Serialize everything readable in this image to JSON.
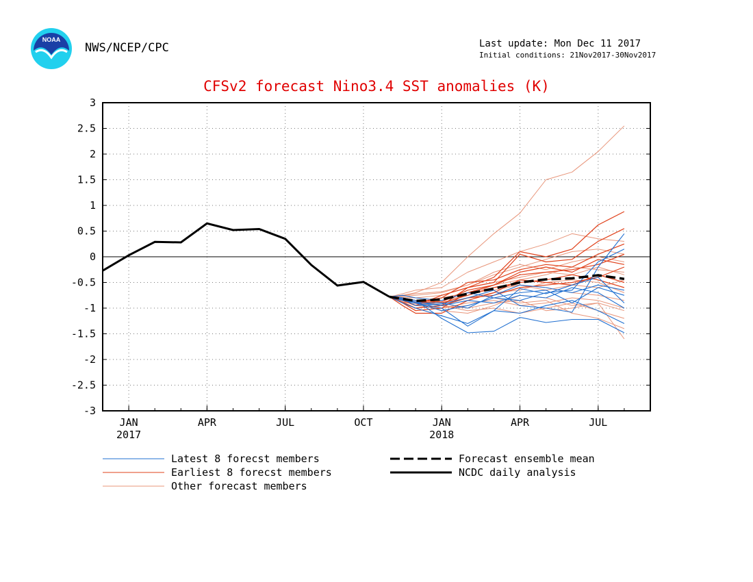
{
  "header": {
    "logo_text": "NOAA",
    "agency": "NWS/NCEP/CPC",
    "last_update": "Last update: Mon Dec 11 2017",
    "initial_conditions": "Initial conditions: 21Nov2017-30Nov2017"
  },
  "colors": {
    "title": "#e00000",
    "latest": "#1f6fd0",
    "earliest": "#e0401a",
    "other": "#e8957a",
    "mean": "#000000",
    "analysis": "#000000",
    "logo_blue": "#1a3fa6",
    "logo_cyan": "#22d0ee"
  },
  "chart_data": {
    "type": "line",
    "title": "CFSv2 forecast Nino3.4 SST anomalies (K)",
    "ylim": [
      -3,
      3
    ],
    "yticks": [
      "3",
      "2.5",
      "2",
      "1.5",
      "1",
      "0.5",
      "0",
      "-0.5",
      "-1",
      "-1.5",
      "-2",
      "-2.5",
      "-3"
    ],
    "xticks": [
      {
        "label": "JAN",
        "year": "2017",
        "t": 0
      },
      {
        "label": "APR",
        "year": "",
        "t": 3
      },
      {
        "label": "JUL",
        "year": "",
        "t": 6
      },
      {
        "label": "OCT",
        "year": "",
        "t": 9
      },
      {
        "label": "JAN",
        "year": "2018",
        "t": 12
      },
      {
        "label": "APR",
        "year": "",
        "t": 15
      },
      {
        "label": "JUL",
        "year": "",
        "t": 18
      }
    ],
    "grid": true,
    "xlim": [
      -1,
      20
    ],
    "analysis": {
      "name": "NCDC daily analysis",
      "x": [
        -1,
        0,
        1,
        2,
        3,
        4,
        5,
        6,
        7,
        8,
        9,
        10
      ],
      "y": [
        -0.27,
        0.03,
        0.29,
        0.28,
        0.65,
        0.52,
        0.54,
        0.35,
        -0.16,
        -0.56,
        -0.49,
        -0.78
      ]
    },
    "mean": {
      "name": "Forecast ensemble mean",
      "x": [
        10,
        10.5,
        11,
        12,
        13,
        14,
        15,
        16,
        17,
        18,
        19
      ],
      "y": [
        -0.78,
        -0.82,
        -0.86,
        -0.83,
        -0.72,
        -0.62,
        -0.5,
        -0.44,
        -0.42,
        -0.36,
        -0.43
      ]
    },
    "forecast_x": [
      10,
      10.5,
      11,
      12,
      13,
      14,
      15,
      16,
      17,
      18,
      19
    ],
    "members_latest": {
      "name": "Latest 8 forecst members",
      "series": [
        [
          -0.78,
          -0.8,
          -0.85,
          -1.2,
          -1.48,
          -1.45,
          -1.18,
          -1.28,
          -1.22,
          -1.22,
          -1.48
        ],
        [
          -0.78,
          -0.85,
          -0.9,
          -1.0,
          -1.35,
          -1.05,
          -0.62,
          -0.72,
          -0.55,
          -0.4,
          -0.9
        ],
        [
          -0.78,
          -0.82,
          -0.95,
          -0.92,
          -0.8,
          -0.65,
          -0.95,
          -1.0,
          -1.08,
          -0.2,
          0.45
        ],
        [
          -0.78,
          -0.75,
          -0.8,
          -0.85,
          -0.7,
          -0.8,
          -0.7,
          -0.65,
          -0.9,
          -0.6,
          -0.75
        ],
        [
          -0.78,
          -0.9,
          -1.0,
          -1.15,
          -1.3,
          -1.05,
          -1.1,
          -0.95,
          -0.85,
          -1.05,
          -1.3
        ],
        [
          -0.78,
          -0.8,
          -0.88,
          -0.95,
          -0.85,
          -0.9,
          -0.75,
          -0.8,
          -0.6,
          -0.7,
          -1.0
        ],
        [
          -0.78,
          -0.83,
          -0.9,
          -1.05,
          -0.95,
          -0.8,
          -0.85,
          -0.7,
          -0.65,
          -0.1,
          0.15
        ],
        [
          -0.78,
          -0.8,
          -0.9,
          -0.9,
          -1.0,
          -0.75,
          -0.55,
          -0.6,
          -0.7,
          -0.55,
          -0.65
        ]
      ]
    },
    "members_earliest": {
      "name": "Earliest 8 forecst members",
      "series": [
        [
          -0.78,
          -0.85,
          -0.95,
          -0.75,
          -0.6,
          -0.4,
          0.1,
          0.0,
          0.15,
          0.62,
          0.88
        ],
        [
          -0.78,
          -0.88,
          -1.0,
          -0.95,
          -0.6,
          -0.5,
          0.05,
          -0.1,
          -0.05,
          0.3,
          0.55
        ],
        [
          -0.78,
          -0.9,
          -1.05,
          -1.0,
          -0.7,
          -0.55,
          -0.3,
          -0.2,
          -0.3,
          -0.05,
          -0.15
        ],
        [
          -0.78,
          -0.95,
          -1.1,
          -1.1,
          -0.85,
          -0.7,
          -0.45,
          -0.5,
          -0.55,
          -0.35,
          -0.5
        ],
        [
          -0.78,
          -0.82,
          -0.9,
          -0.8,
          -0.5,
          -0.45,
          -0.25,
          -0.15,
          -0.2,
          0.05,
          0.25
        ],
        [
          -0.78,
          -0.85,
          -0.88,
          -0.9,
          -0.75,
          -0.6,
          -0.5,
          -0.45,
          -0.35,
          -0.45,
          -0.6
        ],
        [
          -0.78,
          -0.9,
          -1.0,
          -0.95,
          -0.8,
          -0.75,
          -0.6,
          -0.55,
          -0.5,
          -0.4,
          -0.2
        ],
        [
          -0.78,
          -0.8,
          -0.85,
          -0.88,
          -0.65,
          -0.55,
          -0.35,
          -0.3,
          -0.25,
          -0.15,
          0.05
        ]
      ]
    },
    "members_other": {
      "name": "Other forecast members",
      "series": [
        [
          -0.78,
          -0.75,
          -0.7,
          -0.5,
          0.0,
          0.45,
          0.85,
          1.5,
          1.65,
          2.05,
          2.55
        ],
        [
          -0.78,
          -0.72,
          -0.65,
          -0.6,
          -0.3,
          -0.1,
          0.1,
          0.25,
          0.45,
          0.35,
          0.3
        ],
        [
          -0.78,
          -0.8,
          -0.85,
          -0.95,
          -1.0,
          -0.9,
          -0.85,
          -1.05,
          -1.0,
          -0.9,
          -1.6
        ],
        [
          -0.78,
          -0.82,
          -0.9,
          -1.0,
          -0.95,
          -0.8,
          -0.9,
          -0.85,
          -1.1,
          -1.2,
          -1.4
        ],
        [
          -0.78,
          -0.77,
          -0.75,
          -0.7,
          -0.55,
          -0.35,
          -0.2,
          -0.05,
          0.1,
          0.15,
          0.05
        ],
        [
          -0.78,
          -0.85,
          -0.95,
          -0.85,
          -0.7,
          -0.65,
          -0.55,
          -0.6,
          -0.7,
          -0.75,
          -0.85
        ],
        [
          -0.78,
          -0.8,
          -0.85,
          -1.05,
          -1.1,
          -0.95,
          -0.75,
          -0.8,
          -0.95,
          -0.9,
          -1.05
        ],
        [
          -0.78,
          -0.75,
          -0.8,
          -0.75,
          -0.6,
          -0.5,
          -0.4,
          -0.3,
          -0.35,
          -0.2,
          -0.35
        ],
        [
          -0.78,
          -0.88,
          -0.92,
          -0.9,
          -0.8,
          -0.7,
          -0.65,
          -0.5,
          -0.45,
          -0.5,
          -0.7
        ],
        [
          -0.78,
          -0.8,
          -0.9,
          -0.95,
          -1.05,
          -1.0,
          -1.1,
          -1.0,
          -0.9,
          -1.05,
          -1.2
        ],
        [
          -0.78,
          -0.76,
          -0.72,
          -0.68,
          -0.55,
          -0.3,
          -0.15,
          -0.25,
          -0.1,
          0.0,
          -0.1
        ],
        [
          -0.78,
          -0.83,
          -0.88,
          -0.8,
          -0.7,
          -0.6,
          -0.55,
          -0.65,
          -0.55,
          -0.6,
          -0.45
        ],
        [
          -0.78,
          -0.85,
          -0.95,
          -1.0,
          -0.9,
          -0.85,
          -0.95,
          -0.9,
          -0.8,
          -0.85,
          -1.0
        ],
        [
          -0.78,
          -0.79,
          -0.8,
          -0.85,
          -0.75,
          -0.55,
          -0.45,
          -0.35,
          -0.2,
          -0.25,
          -0.3
        ]
      ]
    }
  }
}
